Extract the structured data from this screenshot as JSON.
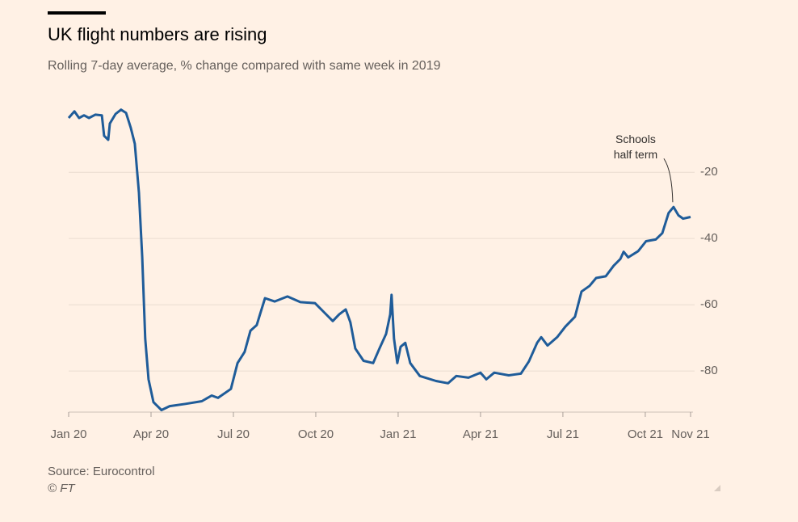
{
  "chart_data": {
    "type": "line",
    "title": "UK flight numbers are rising",
    "subtitle": "Rolling 7-day average, % change compared with same week in 2019",
    "source": "Source: Eurocontrol",
    "credit": "© FT",
    "annotation": {
      "lines": [
        "Schools",
        "half term"
      ],
      "x": 22.03,
      "y": -30.5
    },
    "grid": true,
    "xlim": [
      0,
      22.65
    ],
    "xticks": [
      {
        "value": 0,
        "label": "Jan 20"
      },
      {
        "value": 3,
        "label": "Apr 20"
      },
      {
        "value": 6,
        "label": "Jul 20"
      },
      {
        "value": 9,
        "label": "Oct 20"
      },
      {
        "value": 12,
        "label": "Jan 21"
      },
      {
        "value": 15,
        "label": "Apr 21"
      },
      {
        "value": 18,
        "label": "Jul 21"
      },
      {
        "value": 21,
        "label": "Oct 21"
      },
      {
        "value": 22.65,
        "label": "Nov 21"
      }
    ],
    "ylim": [
      -92.4,
      2
    ],
    "yticks": [
      -20,
      -40,
      -60,
      -80
    ],
    "series": [
      {
        "color": "#1f5c99",
        "x": [
          0,
          0.21,
          0.38,
          0.56,
          0.74,
          0.97,
          1.21,
          1.29,
          1.44,
          1.5,
          1.71,
          1.91,
          2.09,
          2.26,
          2.41,
          2.56,
          2.68,
          2.79,
          2.91,
          3.09,
          3.38,
          3.68,
          4.26,
          4.85,
          5.21,
          5.44,
          5.91,
          6.15,
          6.41,
          6.62,
          6.85,
          6.97,
          7.15,
          7.5,
          7.97,
          8.44,
          8.97,
          9.26,
          9.62,
          9.85,
          10.09,
          10.26,
          10.44,
          10.74,
          11.09,
          11.32,
          11.56,
          11.71,
          11.76,
          11.85,
          11.97,
          12.09,
          12.26,
          12.44,
          12.79,
          13.38,
          13.82,
          14.12,
          14.56,
          15,
          15.21,
          15.5,
          16.03,
          16.47,
          16.76,
          17.06,
          17.21,
          17.44,
          17.79,
          18.09,
          18.44,
          18.68,
          18.97,
          19.21,
          19.56,
          19.85,
          20.09,
          20.21,
          20.38,
          20.74,
          21.03,
          21.38,
          21.62,
          21.85,
          22.03,
          22.21,
          22.38,
          22.65
        ],
        "values": [
          -3.6,
          -1.6,
          -3.6,
          -2.8,
          -3.6,
          -2.6,
          -2.8,
          -9,
          -10.2,
          -5.3,
          -2.4,
          -1.1,
          -2.1,
          -6.5,
          -11.4,
          -26.1,
          -45.7,
          -70.2,
          -82.5,
          -89.4,
          -91.8,
          -90.6,
          -89.9,
          -89.1,
          -87.4,
          -88.1,
          -85.4,
          -77.6,
          -74.2,
          -67.8,
          -66.1,
          -62.9,
          -58,
          -59,
          -57.5,
          -59.2,
          -59.5,
          -61.9,
          -64.9,
          -62.9,
          -61.4,
          -65.3,
          -73.2,
          -76.9,
          -77.6,
          -73.2,
          -68.8,
          -62.9,
          -57,
          -70.2,
          -77.6,
          -72.7,
          -71.5,
          -77.6,
          -81.5,
          -83,
          -83.7,
          -81.5,
          -82,
          -80.5,
          -82.5,
          -80.5,
          -81.3,
          -80.8,
          -77.1,
          -71.5,
          -69.8,
          -72.3,
          -69.8,
          -66.6,
          -63.6,
          -56,
          -54.3,
          -51.9,
          -51.4,
          -48.2,
          -46.2,
          -44,
          -45.7,
          -43.8,
          -40.8,
          -40.3,
          -38.4,
          -32.3,
          -30.5,
          -33,
          -34,
          -33.5
        ]
      }
    ]
  }
}
